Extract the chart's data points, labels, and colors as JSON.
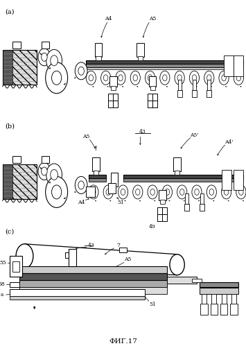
{
  "fig_label": "ФИГ.17",
  "bg_color": "#ffffff",
  "panel_labels": [
    "(a)",
    "(b)",
    "(c)"
  ]
}
